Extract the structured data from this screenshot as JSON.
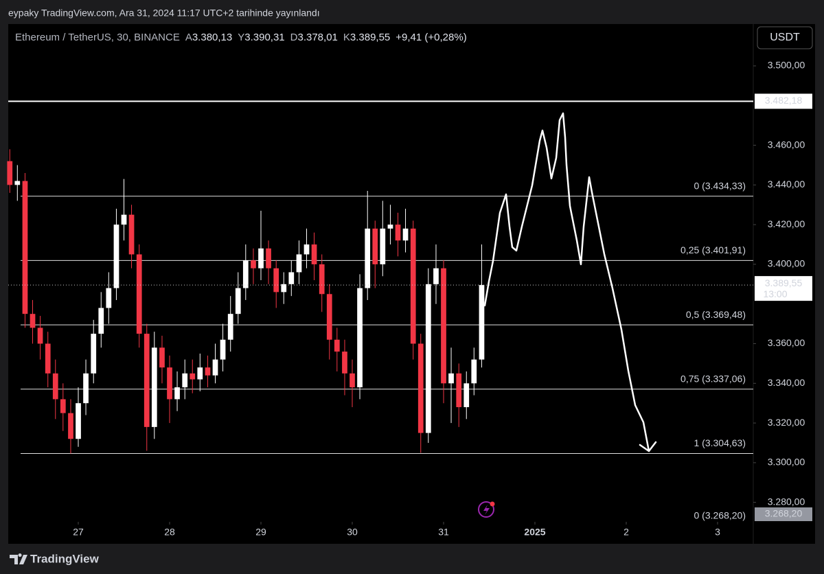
{
  "header": {
    "published": "eypaky TradingView.com, Ara 31, 2024 11:17 UTC+2 tarihinde yayınlandı",
    "brand": "TradingView",
    "currency_button": "USDT"
  },
  "chart_data": {
    "type": "candlestick",
    "title": "Ethereum / TetherUS, 30, BINANCE",
    "ohlc_legend": [
      {
        "key": "A",
        "text": "3.380,13"
      },
      {
        "key": "Y",
        "text": "3.390,31"
      },
      {
        "key": "D",
        "text": "3.378,01"
      },
      {
        "key": "K",
        "text": "3.389,55"
      }
    ],
    "change": "+9,41 (+0,28%)",
    "x": [
      26.25,
      26.333,
      26.417,
      26.5,
      26.583,
      26.667,
      26.75,
      26.833,
      26.917,
      27,
      27.083,
      27.167,
      27.25,
      27.333,
      27.417,
      27.5,
      27.583,
      27.667,
      27.75,
      27.833,
      27.917,
      28,
      28.083,
      28.167,
      28.25,
      28.333,
      28.417,
      28.5,
      28.583,
      28.667,
      28.75,
      28.833,
      28.917,
      29,
      29.083,
      29.167,
      29.25,
      29.333,
      29.417,
      29.5,
      29.583,
      29.667,
      29.75,
      29.833,
      29.917,
      30,
      30.083,
      30.167,
      30.25,
      30.333,
      30.417,
      30.5,
      30.583,
      30.667,
      30.75,
      30.833,
      30.917,
      31,
      31.083,
      31.167,
      31.25,
      31.333,
      31.417
    ],
    "open": [
      3452,
      3440,
      3442,
      3375,
      3368,
      3360,
      3345,
      3332,
      3325,
      3312,
      3330,
      3345,
      3365,
      3378,
      3388,
      3420,
      3425,
      3405,
      3365,
      3318,
      3358,
      3348,
      3332,
      3338,
      3345,
      3342,
      3348,
      3344,
      3352,
      3362,
      3375,
      3388,
      3402,
      3398,
      3408,
      3398,
      3386,
      3390,
      3396,
      3405,
      3410,
      3400,
      3385,
      3362,
      3356,
      3345,
      3338,
      3388,
      3418,
      3400,
      3418,
      3420,
      3412,
      3418,
      3360,
      3315,
      3390,
      3398,
      3340,
      3345,
      3328,
      3340,
      3352
    ],
    "high": [
      3458,
      3450,
      3446,
      3382,
      3374,
      3366,
      3352,
      3340,
      3332,
      3338,
      3352,
      3372,
      3386,
      3396,
      3428,
      3443,
      3430,
      3410,
      3370,
      3366,
      3364,
      3354,
      3346,
      3352,
      3352,
      3355,
      3354,
      3360,
      3370,
      3384,
      3396,
      3410,
      3408,
      3427,
      3412,
      3402,
      3396,
      3402,
      3412,
      3418,
      3416,
      3405,
      3390,
      3368,
      3362,
      3352,
      3395,
      3437,
      3422,
      3432,
      3430,
      3426,
      3428,
      3422,
      3365,
      3398,
      3410,
      3402,
      3358,
      3350,
      3346,
      3358,
      3410
    ],
    "low": [
      3436,
      3432,
      3368,
      3360,
      3352,
      3338,
      3322,
      3316,
      3304.63,
      3308,
      3324,
      3340,
      3358,
      3370,
      3382,
      3412,
      3398,
      3358,
      3306,
      3312,
      3340,
      3320,
      3326,
      3332,
      3335,
      3336,
      3338,
      3340,
      3346,
      3356,
      3370,
      3382,
      3390,
      3392,
      3390,
      3378,
      3380,
      3384,
      3390,
      3398,
      3392,
      3376,
      3352,
      3346,
      3334,
      3328,
      3332,
      3382,
      3388,
      3394,
      3410,
      3404,
      3406,
      3352,
      3305,
      3310,
      3380,
      3330,
      3320,
      3318,
      3322,
      3334,
      3348
    ],
    "close": [
      3440,
      3442,
      3375,
      3368,
      3360,
      3345,
      3332,
      3325,
      3312,
      3330,
      3345,
      3365,
      3378,
      3388,
      3420,
      3425,
      3405,
      3365,
      3318,
      3358,
      3348,
      3332,
      3338,
      3345,
      3342,
      3348,
      3344,
      3352,
      3362,
      3375,
      3388,
      3402,
      3398,
      3408,
      3398,
      3386,
      3390,
      3396,
      3405,
      3410,
      3400,
      3385,
      3362,
      3356,
      3345,
      3338,
      3388,
      3418,
      3400,
      3418,
      3420,
      3412,
      3418,
      3360,
      3315,
      3390,
      3398,
      3340,
      3345,
      3328,
      3340,
      3352,
      3389.55
    ],
    "up_color": "#ffffff",
    "down_color": "#f23645",
    "xlim": [
      26.233,
      34.391
    ],
    "xticks": [
      27,
      28,
      29,
      30,
      31,
      {
        "value": 32,
        "label": "2025"
      },
      {
        "value": 33,
        "label": "2"
      },
      {
        "value": 34,
        "label": "3"
      }
    ],
    "ylim": [
      3270.2,
      3521.1
    ],
    "yticks": [
      {
        "value": 3280,
        "label": "3.280,00"
      },
      {
        "value": 3300,
        "label": "3.300,00"
      },
      {
        "value": 3320,
        "label": "3.320,00"
      },
      {
        "value": 3340,
        "label": "3.340,00"
      },
      {
        "value": 3360,
        "label": "3.360,00"
      },
      {
        "value": 3400,
        "label": "3.400,00"
      },
      {
        "value": 3420,
        "label": "3.420,00"
      },
      {
        "value": 3440,
        "label": "3.440,00"
      },
      {
        "value": 3460,
        "label": "3.460,00"
      },
      {
        "value": 3500,
        "label": "3.500,00"
      }
    ],
    "resistance": {
      "value": 3482.18,
      "label": "3.482,18"
    },
    "last_price": {
      "value": 3389.55,
      "label": "3.389,55",
      "countdown": "13:00"
    },
    "fib_levels": [
      {
        "value": 3434.33,
        "label": "0 (3.434,33)"
      },
      {
        "value": 3401.91,
        "label": "0,25 (3.401,91)"
      },
      {
        "value": 3369.48,
        "label": "0,5 (3.369,48)"
      },
      {
        "value": 3337.06,
        "label": "0,75 (3.337,06)"
      },
      {
        "value": 3304.63,
        "label": "1 (3.304,63)"
      },
      {
        "value": 3268.2,
        "label": "0 (3.268,20)",
        "tag": "3.268,20"
      }
    ]
  }
}
